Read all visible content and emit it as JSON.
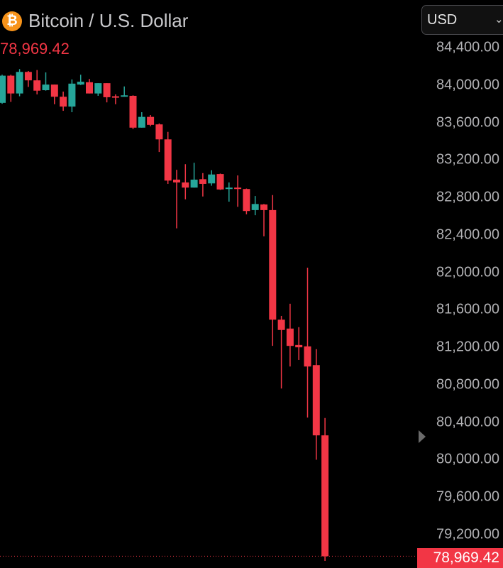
{
  "header": {
    "icon": "bitcoin-icon",
    "icon_glyph": "₿",
    "title": "Bitcoin / U.S. Dollar",
    "last_price": "78,969.42",
    "currency": "USD"
  },
  "colors": {
    "up": "#26a69a",
    "down": "#f23645",
    "background": "#000000",
    "axis_text": "#b2b2b5"
  },
  "chart_data": {
    "type": "candlestick",
    "title": "Bitcoin / U.S. Dollar",
    "ylim": [
      78900,
      84500
    ],
    "y_ticks": [
      84400,
      84000,
      83600,
      83200,
      82800,
      82400,
      82000,
      81600,
      81200,
      80800,
      80400,
      80000,
      79600,
      79200
    ],
    "y_tick_labels": [
      "84,400.00",
      "84,000.00",
      "83,600.00",
      "83,200.00",
      "82,800.00",
      "82,400.00",
      "82,000.00",
      "81,600.00",
      "81,200.00",
      "80,800.00",
      "80,400.00",
      "80,000.00",
      "79,600.00",
      "79,200.00"
    ],
    "last_price": 78969.42,
    "last_price_label": "78,969.42",
    "grid": false,
    "candles": [
      [
        83810,
        84110,
        83800,
        84100
      ],
      [
        84100,
        84110,
        83820,
        83910
      ],
      [
        83910,
        84170,
        83880,
        84140
      ],
      [
        84140,
        84150,
        83980,
        84050
      ],
      [
        84050,
        84160,
        83900,
        83940
      ],
      [
        83945,
        84135,
        83940,
        84005
      ],
      [
        84005,
        84005,
        83795,
        83875
      ],
      [
        83875,
        83930,
        83725,
        83770
      ],
      [
        83770,
        84060,
        83710,
        84015
      ],
      [
        84005,
        84110,
        84000,
        84035
      ],
      [
        84030,
        84065,
        83910,
        83910
      ],
      [
        83910,
        84020,
        83885,
        84020
      ],
      [
        84020,
        84020,
        83815,
        83870
      ],
      [
        83880,
        83900,
        83795,
        83865
      ],
      [
        83875,
        83985,
        83875,
        83890
      ],
      [
        83885,
        83890,
        83530,
        83545
      ],
      [
        83545,
        83710,
        83545,
        83660
      ],
      [
        83660,
        83680,
        83560,
        83575
      ],
      [
        83580,
        83590,
        83285,
        83420
      ],
      [
        83420,
        83500,
        82945,
        82980
      ],
      [
        82990,
        83095,
        82470,
        82960
      ],
      [
        82960,
        83155,
        82780,
        82905
      ],
      [
        82905,
        83170,
        82905,
        82990
      ],
      [
        82995,
        83060,
        82810,
        82945
      ],
      [
        82950,
        83090,
        82925,
        83045
      ],
      [
        83050,
        83055,
        82880,
        82885
      ],
      [
        82890,
        82960,
        82755,
        82905
      ],
      [
        82905,
        83035,
        82700,
        82890
      ],
      [
        82890,
        82895,
        82620,
        82655
      ],
      [
        82665,
        82815,
        82610,
        82730
      ],
      [
        82725,
        82730,
        82385,
        82665
      ],
      [
        82665,
        82825,
        81215,
        81495
      ],
      [
        81495,
        81535,
        80760,
        81385
      ],
      [
        81400,
        81665,
        80995,
        81215
      ],
      [
        81225,
        81415,
        81065,
        81200
      ],
      [
        81210,
        82050,
        80450,
        80995
      ],
      [
        81010,
        81180,
        80000,
        80260
      ],
      [
        80260,
        80445,
        78920,
        78969.42
      ]
    ]
  }
}
